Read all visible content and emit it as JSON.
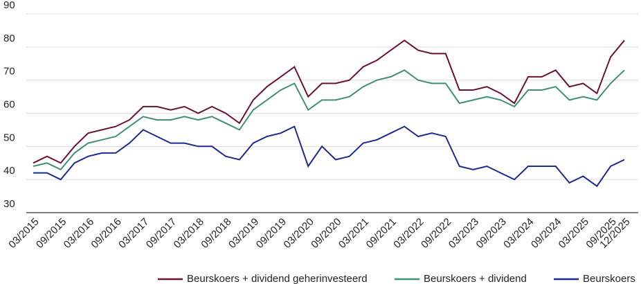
{
  "chart_data": {
    "type": "line",
    "x": [
      "03/2015",
      "06/2015",
      "09/2015",
      "12/2015",
      "03/2016",
      "06/2016",
      "09/2016",
      "12/2016",
      "03/2017",
      "06/2017",
      "09/2017",
      "12/2017",
      "03/2018",
      "06/2018",
      "09/2018",
      "12/2018",
      "03/2019",
      "06/2019",
      "09/2019",
      "12/2019",
      "03/2020",
      "06/2020",
      "09/2020",
      "12/2020",
      "03/2021",
      "06/2021",
      "09/2021",
      "12/2021",
      "03/2022",
      "06/2022",
      "09/2022",
      "12/2022",
      "03/2023",
      "06/2023",
      "09/2023",
      "12/2023",
      "03/2024",
      "06/2024",
      "09/2024",
      "12/2024",
      "03/2025",
      "06/2025",
      "09/2025",
      "12/2025"
    ],
    "xticks": [
      "03/2015",
      "09/2015",
      "03/2016",
      "09/2016",
      "03/2017",
      "09/2017",
      "03/2018",
      "09/2018",
      "03/2019",
      "09/2019",
      "03/2020",
      "09/2020",
      "03/2021",
      "09/2021",
      "03/2022",
      "09/2022",
      "03/2023",
      "09/2023",
      "03/2024",
      "09/2024",
      "03/2025",
      "09/2025",
      "12/2025"
    ],
    "series": [
      {
        "name": "Beurskoers + dividend geherinvesteerd",
        "color": "#6b1033",
        "values": [
          45,
          47,
          45,
          50,
          54,
          55,
          56,
          58,
          62,
          62,
          61,
          62,
          60,
          62,
          60,
          57,
          64,
          68,
          71,
          74,
          65,
          69,
          69,
          70,
          74,
          76,
          79,
          82,
          79,
          78,
          78,
          67,
          67,
          68,
          66,
          63,
          71,
          71,
          73,
          68,
          69,
          66,
          77,
          82
        ]
      },
      {
        "name": "Beurskoers + dividend",
        "color": "#3f8f73",
        "values": [
          44,
          45,
          43,
          48,
          51,
          52,
          53,
          56,
          59,
          58,
          58,
          59,
          58,
          59,
          57,
          55,
          61,
          64,
          67,
          69,
          61,
          64,
          64,
          65,
          68,
          70,
          71,
          73,
          70,
          69,
          69,
          63,
          64,
          65,
          64,
          62,
          67,
          67,
          68,
          64,
          65,
          64,
          69,
          73
        ]
      },
      {
        "name": "Beurskoers",
        "color": "#1b2a8c",
        "values": [
          42,
          42,
          40,
          45,
          47,
          48,
          48,
          51,
          55,
          53,
          51,
          51,
          50,
          50,
          47,
          46,
          51,
          53,
          54,
          56,
          44,
          50,
          46,
          47,
          51,
          52,
          54,
          56,
          53,
          54,
          53,
          44,
          43,
          44,
          42,
          40,
          44,
          44,
          44,
          39,
          41,
          38,
          44,
          46
        ]
      }
    ],
    "ylim": [
      30,
      90
    ],
    "yticks": [
      30,
      40,
      50,
      60,
      70,
      80,
      90
    ],
    "grid": true,
    "legend": "bottom"
  }
}
